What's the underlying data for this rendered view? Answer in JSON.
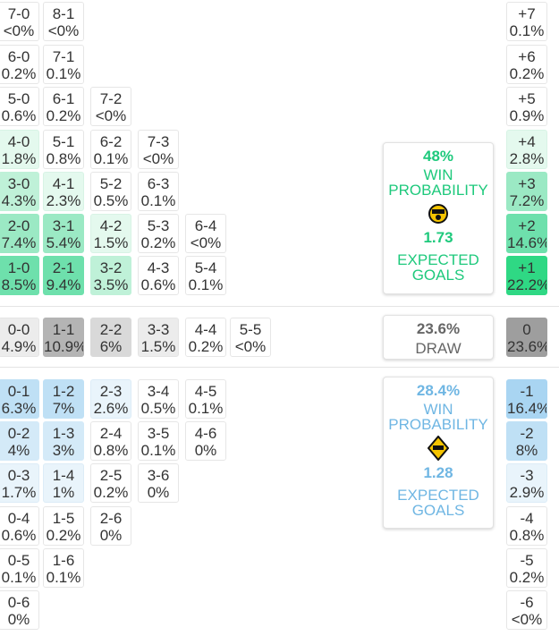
{
  "colors": {
    "home_accent": "#1ec97c",
    "away_accent": "#6fb6e3",
    "draw_text": "#666666"
  },
  "home_card": {
    "win_pct": "48%",
    "win_label": [
      "WIN",
      "PROBABILITY"
    ],
    "logo_icon": "home-team-badge-icon",
    "xg_value": "1.73",
    "xg_label": [
      "EXPECTED",
      "GOALS"
    ]
  },
  "draw_card": {
    "pct": "23.6%",
    "label": "DRAW"
  },
  "away_card": {
    "win_pct": "28.4%",
    "win_label": [
      "WIN",
      "PROBABILITY"
    ],
    "logo_icon": "away-team-badge-icon",
    "xg_value": "1.28",
    "xg_label": [
      "EXPECTED",
      "GOALS"
    ]
  },
  "home_scores": [
    [
      {
        "s": "7-0",
        "p": "<0%"
      },
      {
        "s": "8-1",
        "p": "<0%"
      }
    ],
    [
      {
        "s": "6-0",
        "p": "0.2%"
      },
      {
        "s": "7-1",
        "p": "0.1%"
      }
    ],
    [
      {
        "s": "5-0",
        "p": "0.6%"
      },
      {
        "s": "6-1",
        "p": "0.2%"
      },
      {
        "s": "7-2",
        "p": "<0%"
      }
    ],
    [
      {
        "s": "4-0",
        "p": "1.8%"
      },
      {
        "s": "5-1",
        "p": "0.8%"
      },
      {
        "s": "6-2",
        "p": "0.1%"
      },
      {
        "s": "7-3",
        "p": "<0%"
      }
    ],
    [
      {
        "s": "3-0",
        "p": "4.3%"
      },
      {
        "s": "4-1",
        "p": "2.3%"
      },
      {
        "s": "5-2",
        "p": "0.5%"
      },
      {
        "s": "6-3",
        "p": "0.1%"
      }
    ],
    [
      {
        "s": "2-0",
        "p": "7.4%"
      },
      {
        "s": "3-1",
        "p": "5.4%"
      },
      {
        "s": "4-2",
        "p": "1.5%"
      },
      {
        "s": "5-3",
        "p": "0.2%"
      },
      {
        "s": "6-4",
        "p": "<0%"
      }
    ],
    [
      {
        "s": "1-0",
        "p": "8.5%"
      },
      {
        "s": "2-1",
        "p": "9.4%"
      },
      {
        "s": "3-2",
        "p": "3.5%"
      },
      {
        "s": "4-3",
        "p": "0.6%"
      },
      {
        "s": "5-4",
        "p": "0.1%"
      }
    ]
  ],
  "draw_scores": [
    [
      {
        "s": "0-0",
        "p": "4.9%"
      },
      {
        "s": "1-1",
        "p": "10.9%"
      },
      {
        "s": "2-2",
        "p": "6%"
      },
      {
        "s": "3-3",
        "p": "1.5%"
      },
      {
        "s": "4-4",
        "p": "0.2%"
      },
      {
        "s": "5-5",
        "p": "<0%"
      }
    ]
  ],
  "away_scores": [
    [
      {
        "s": "0-1",
        "p": "6.3%"
      },
      {
        "s": "1-2",
        "p": "7%"
      },
      {
        "s": "2-3",
        "p": "2.6%"
      },
      {
        "s": "3-4",
        "p": "0.5%"
      },
      {
        "s": "4-5",
        "p": "0.1%"
      }
    ],
    [
      {
        "s": "0-2",
        "p": "4%"
      },
      {
        "s": "1-3",
        "p": "3%"
      },
      {
        "s": "2-4",
        "p": "0.8%"
      },
      {
        "s": "3-5",
        "p": "0.1%"
      },
      {
        "s": "4-6",
        "p": "0%"
      }
    ],
    [
      {
        "s": "0-3",
        "p": "1.7%"
      },
      {
        "s": "1-4",
        "p": "1%"
      },
      {
        "s": "2-5",
        "p": "0.2%"
      },
      {
        "s": "3-6",
        "p": "0%"
      }
    ],
    [
      {
        "s": "0-4",
        "p": "0.6%"
      },
      {
        "s": "1-5",
        "p": "0.2%"
      },
      {
        "s": "2-6",
        "p": "0%"
      }
    ],
    [
      {
        "s": "0-5",
        "p": "0.1%"
      },
      {
        "s": "1-6",
        "p": "0.1%"
      }
    ],
    [
      {
        "s": "0-6",
        "p": "0%"
      }
    ]
  ],
  "home_margins": [
    {
      "m": "+7",
      "p": "0.1%"
    },
    {
      "m": "+6",
      "p": "0.2%"
    },
    {
      "m": "+5",
      "p": "0.9%"
    },
    {
      "m": "+4",
      "p": "2.8%"
    },
    {
      "m": "+3",
      "p": "7.2%"
    },
    {
      "m": "+2",
      "p": "14.6%"
    },
    {
      "m": "+1",
      "p": "22.2%"
    }
  ],
  "draw_margin": {
    "m": "0",
    "p": "23.6%"
  },
  "away_margins": [
    {
      "m": "-1",
      "p": "16.4%"
    },
    {
      "m": "-2",
      "p": "8%"
    },
    {
      "m": "-3",
      "p": "2.9%"
    },
    {
      "m": "-4",
      "p": "0.8%"
    },
    {
      "m": "-5",
      "p": "0.2%"
    },
    {
      "m": "-6",
      "p": "<0%"
    }
  ]
}
